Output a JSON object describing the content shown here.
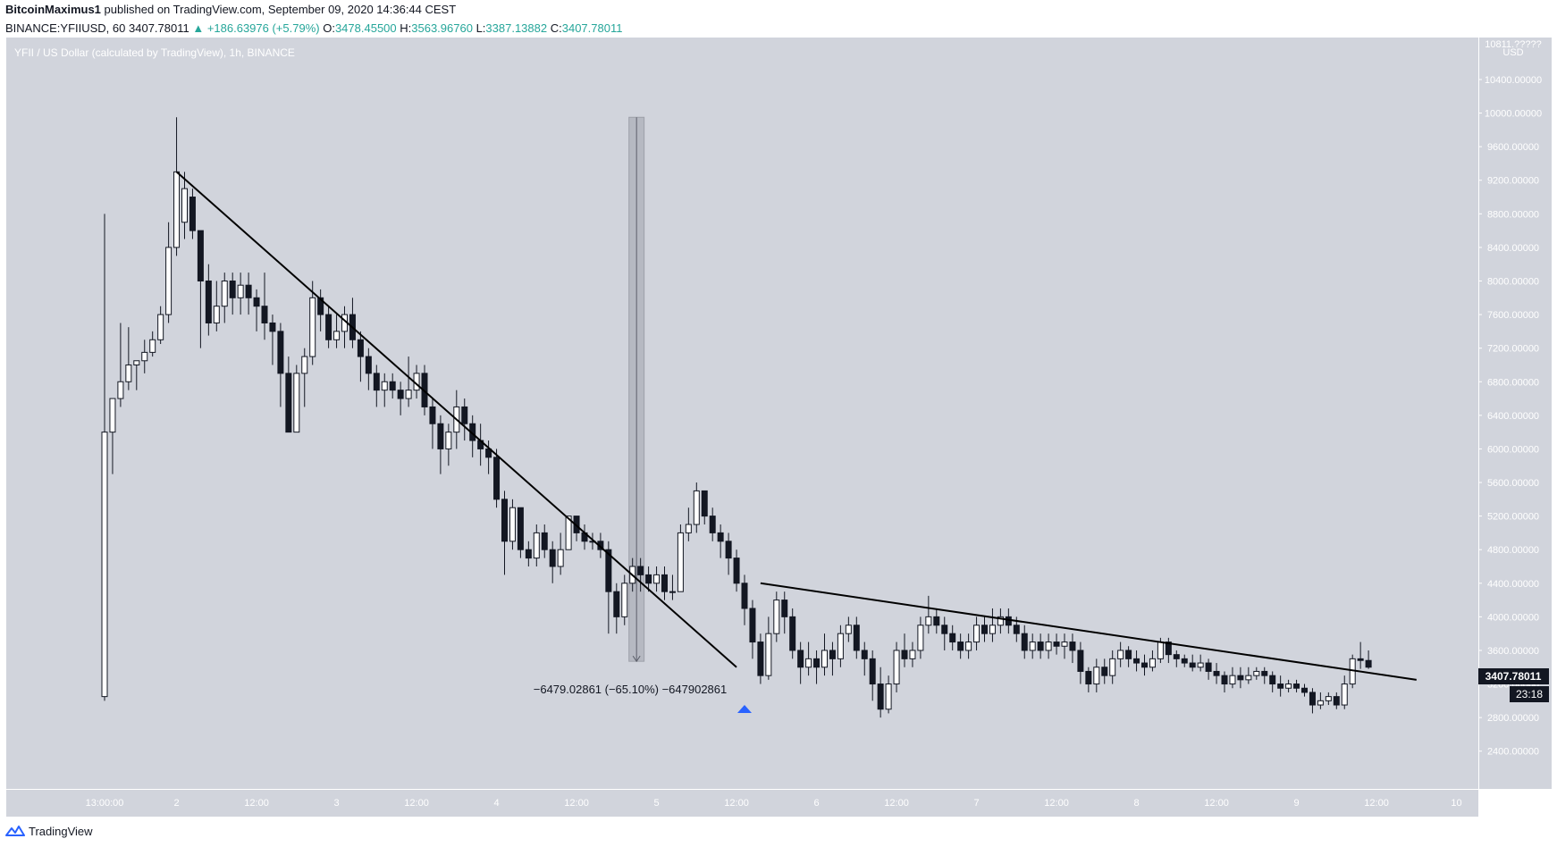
{
  "header": {
    "author": "BitcoinMaximus1",
    "published": "published on TradingView.com, September 09, 2020 14:36:44 CEST",
    "symbol": "BINANCE:YFIIUSD, 60",
    "last": "3407.78011",
    "change": "▲ +186.63976 (+5.79%)",
    "o_label": "O:",
    "o_value": "3478.45500",
    "h_label": "H:",
    "h_value": "3563.96760",
    "l_label": "L:",
    "l_value": "3387.13882",
    "c_label": "C:",
    "c_value": "3407.78011"
  },
  "chart_title": "YFII / US Dollar (calculated by TradingView), 1h, BINANCE",
  "axis_unit_top": "10811.?????",
  "axis_unit": "USD",
  "price_tag": "3407.78011",
  "countdown_tag": "23:18",
  "measure_label": "−6479.02861 (−65.10%) −647902861",
  "footer_brand": "TradingView",
  "colors": {
    "background": "#d1d4dc",
    "candle_up": "#ffffff",
    "candle_down": "#131722",
    "wick": "#131722",
    "trendline": "#000000",
    "measure_fill": "#b2b5be",
    "marker": "#2962ff",
    "header_up": "#26a69a"
  },
  "chart_data": {
    "type": "candlestick",
    "title": "YFII / US Dollar (calculated by TradingView), 1h, BINANCE",
    "ylabel": "USD",
    "ylim": [
      1950,
      10900
    ],
    "y_ticks": [
      "2400.00000",
      "2800.00000",
      "3200.00000",
      "3600.00000",
      "4000.00000",
      "4400.00000",
      "4800.00000",
      "5200.00000",
      "5600.00000",
      "6000.00000",
      "6400.00000",
      "6800.00000",
      "7200.00000",
      "7600.00000",
      "8000.00000",
      "8400.00000",
      "8800.00000",
      "9200.00000",
      "9600.00000",
      "10000.00000",
      "10400.00000"
    ],
    "y_tick_values": [
      2400,
      2800,
      3200,
      3600,
      4000,
      4400,
      4800,
      5200,
      5600,
      6000,
      6400,
      6800,
      7200,
      7600,
      8000,
      8400,
      8800,
      9200,
      9600,
      10000,
      10400
    ],
    "x_ticks": [
      "13:00:00",
      "2",
      "12:00",
      "3",
      "12:00",
      "4",
      "12:00",
      "5",
      "12:00",
      "6",
      "12:00",
      "7",
      "12:00",
      "8",
      "12:00",
      "9",
      "12:00",
      "10"
    ],
    "x_tick_bars": [
      0,
      9,
      19,
      29,
      39,
      49,
      59,
      69,
      79,
      89,
      99,
      109,
      119,
      129,
      139,
      149,
      159,
      169
    ],
    "candles": [
      [
        3050,
        6200,
        8800,
        3000
      ],
      [
        6200,
        6600,
        6600,
        5700
      ],
      [
        6600,
        6800,
        7500,
        6500
      ],
      [
        6800,
        7000,
        7450,
        6700
      ],
      [
        7000,
        7050,
        7050,
        6700
      ],
      [
        7050,
        7150,
        7300,
        6900
      ],
      [
        7150,
        7300,
        7400,
        7100
      ],
      [
        7300,
        7600,
        7700,
        7250
      ],
      [
        7600,
        8400,
        8700,
        7500
      ],
      [
        8400,
        9300,
        9950,
        8300
      ],
      [
        8700,
        9100,
        9300,
        8500
      ],
      [
        9000,
        8600,
        9100,
        8500
      ],
      [
        8600,
        8000,
        8600,
        7200
      ],
      [
        8000,
        7500,
        8200,
        7350
      ],
      [
        7500,
        7700,
        8000,
        7400
      ],
      [
        7700,
        8000,
        8100,
        7500
      ],
      [
        8000,
        7800,
        8100,
        7600
      ],
      [
        7800,
        7950,
        8100,
        7600
      ],
      [
        7950,
        7800,
        8100,
        7600
      ],
      [
        7800,
        7700,
        7900,
        7400
      ],
      [
        7700,
        7500,
        8100,
        7300
      ],
      [
        7500,
        7400,
        7600,
        7000
      ],
      [
        7400,
        6900,
        7500,
        6500
      ],
      [
        6900,
        6200,
        7100,
        6200
      ],
      [
        6200,
        6900,
        7000,
        6200
      ],
      [
        6900,
        7100,
        7200,
        6500
      ],
      [
        7100,
        7800,
        8000,
        7000
      ],
      [
        7800,
        7600,
        7900,
        7400
      ],
      [
        7600,
        7300,
        7700,
        7200
      ],
      [
        7300,
        7400,
        7600,
        7200
      ],
      [
        7400,
        7600,
        7700,
        7200
      ],
      [
        7600,
        7300,
        7800,
        7200
      ],
      [
        7300,
        7100,
        7400,
        6800
      ],
      [
        7100,
        6900,
        7200,
        6700
      ],
      [
        6900,
        6700,
        7000,
        6500
      ],
      [
        6700,
        6800,
        6900,
        6500
      ],
      [
        6800,
        6700,
        6900,
        6600
      ],
      [
        6700,
        6600,
        6800,
        6400
      ],
      [
        6600,
        6700,
        7100,
        6500
      ],
      [
        6700,
        6900,
        7000,
        6600
      ],
      [
        6900,
        6500,
        7000,
        6400
      ],
      [
        6500,
        6300,
        6600,
        6000
      ],
      [
        6300,
        6000,
        6400,
        5700
      ],
      [
        6000,
        6200,
        6300,
        5800
      ],
      [
        6200,
        6500,
        6700,
        6000
      ],
      [
        6500,
        6300,
        6600,
        6100
      ],
      [
        6300,
        6100,
        6400,
        5900
      ],
      [
        6100,
        6000,
        6300,
        5800
      ],
      [
        6000,
        5900,
        6100,
        5700
      ],
      [
        5900,
        5400,
        6000,
        5300
      ],
      [
        5400,
        4900,
        5500,
        4500
      ],
      [
        4900,
        5300,
        5400,
        4800
      ],
      [
        5300,
        4800,
        5300,
        4700
      ],
      [
        4800,
        4700,
        4900,
        4600
      ],
      [
        4700,
        5000,
        5100,
        4600
      ],
      [
        5000,
        4800,
        5100,
        4700
      ],
      [
        4800,
        4600,
        4900,
        4400
      ],
      [
        4600,
        4800,
        5000,
        4500
      ],
      [
        4800,
        5200,
        5200,
        4800
      ],
      [
        5200,
        5000,
        5200,
        4900
      ],
      [
        5000,
        4900,
        5100,
        4800
      ],
      [
        4900,
        4900,
        5000,
        4800
      ],
      [
        4900,
        4800,
        5000,
        4700
      ],
      [
        4800,
        4300,
        4900,
        3800
      ],
      [
        4300,
        4000,
        4400,
        3800
      ],
      [
        4000,
        4400,
        4500,
        3900
      ],
      [
        4400,
        4600,
        4700,
        4300
      ],
      [
        4600,
        4500,
        4700,
        4300
      ],
      [
        4500,
        4400,
        4600,
        4300
      ],
      [
        4400,
        4500,
        4600,
        4300
      ],
      [
        4500,
        4300,
        4600,
        4200
      ],
      [
        4300,
        4300,
        4500,
        4200
      ],
      [
        4300,
        5000,
        5100,
        4300
      ],
      [
        5000,
        5100,
        5300,
        4900
      ],
      [
        5100,
        5500,
        5600,
        5000
      ],
      [
        5500,
        5200,
        5500,
        5100
      ],
      [
        5200,
        5000,
        5300,
        4900
      ],
      [
        5000,
        4900,
        5100,
        4700
      ],
      [
        4900,
        4700,
        5000,
        4500
      ],
      [
        4700,
        4400,
        4800,
        4300
      ],
      [
        4400,
        4100,
        4500,
        3900
      ],
      [
        4100,
        3700,
        4200,
        3500
      ],
      [
        3700,
        3300,
        3800,
        3200
      ],
      [
        3300,
        3800,
        4000,
        3250
      ],
      [
        3800,
        4200,
        4300,
        3700
      ],
      [
        4200,
        4000,
        4300,
        3800
      ],
      [
        4000,
        3600,
        4100,
        3500
      ],
      [
        3600,
        3400,
        3700,
        3200
      ],
      [
        3400,
        3500,
        3700,
        3300
      ],
      [
        3500,
        3400,
        3600,
        3200
      ],
      [
        3400,
        3600,
        3800,
        3300
      ],
      [
        3600,
        3500,
        3700,
        3300
      ],
      [
        3500,
        3800,
        3900,
        3400
      ],
      [
        3800,
        3900,
        4000,
        3700
      ],
      [
        3900,
        3600,
        4000,
        3500
      ],
      [
        3600,
        3500,
        3700,
        3300
      ],
      [
        3500,
        3200,
        3600,
        3000
      ],
      [
        3200,
        2900,
        3400,
        2800
      ],
      [
        2900,
        3200,
        3300,
        2850
      ],
      [
        3200,
        3600,
        3700,
        3100
      ],
      [
        3600,
        3500,
        3800,
        3400
      ],
      [
        3500,
        3600,
        3700,
        3400
      ],
      [
        3600,
        3900,
        4000,
        3500
      ],
      [
        3900,
        4000,
        4250,
        3800
      ],
      [
        4000,
        3900,
        4100,
        3800
      ],
      [
        3900,
        3800,
        4000,
        3600
      ],
      [
        3800,
        3700,
        3900,
        3600
      ],
      [
        3700,
        3600,
        3800,
        3500
      ],
      [
        3600,
        3700,
        3800,
        3500
      ],
      [
        3700,
        3900,
        4000,
        3600
      ],
      [
        3900,
        3800,
        4000,
        3700
      ],
      [
        3800,
        3900,
        4100,
        3700
      ],
      [
        3900,
        4000,
        4100,
        3800
      ],
      [
        4000,
        3900,
        4100,
        3800
      ],
      [
        3900,
        3800,
        4000,
        3700
      ],
      [
        3800,
        3600,
        3900,
        3500
      ],
      [
        3600,
        3700,
        3800,
        3500
      ],
      [
        3700,
        3600,
        3800,
        3500
      ],
      [
        3600,
        3700,
        3800,
        3500
      ],
      [
        3700,
        3650,
        3800,
        3550
      ],
      [
        3650,
        3700,
        3800,
        3500
      ],
      [
        3700,
        3600,
        3800,
        3450
      ],
      [
        3600,
        3350,
        3700,
        3200
      ],
      [
        3350,
        3200,
        3400,
        3100
      ],
      [
        3200,
        3400,
        3500,
        3100
      ],
      [
        3400,
        3300,
        3500,
        3200
      ],
      [
        3300,
        3500,
        3600,
        3200
      ],
      [
        3500,
        3600,
        3700,
        3400
      ],
      [
        3600,
        3500,
        3650,
        3400
      ],
      [
        3500,
        3450,
        3600,
        3350
      ],
      [
        3450,
        3400,
        3550,
        3300
      ],
      [
        3400,
        3500,
        3600,
        3350
      ],
      [
        3500,
        3700,
        3750,
        3450
      ],
      [
        3700,
        3550,
        3750,
        3450
      ],
      [
        3550,
        3500,
        3600,
        3400
      ],
      [
        3500,
        3450,
        3550,
        3400
      ],
      [
        3450,
        3400,
        3550,
        3350
      ],
      [
        3400,
        3450,
        3550,
        3350
      ],
      [
        3450,
        3350,
        3500,
        3250
      ],
      [
        3350,
        3300,
        3450,
        3200
      ],
      [
        3300,
        3200,
        3350,
        3100
      ],
      [
        3200,
        3300,
        3400,
        3150
      ],
      [
        3300,
        3250,
        3400,
        3150
      ],
      [
        3250,
        3300,
        3400,
        3200
      ],
      [
        3300,
        3350,
        3400,
        3250
      ],
      [
        3350,
        3300,
        3400,
        3200
      ],
      [
        3300,
        3200,
        3350,
        3100
      ],
      [
        3200,
        3150,
        3300,
        3050
      ],
      [
        3150,
        3200,
        3250,
        3100
      ],
      [
        3200,
        3150,
        3250,
        3100
      ],
      [
        3150,
        3100,
        3200,
        3050
      ],
      [
        3100,
        2950,
        3150,
        2850
      ],
      [
        2950,
        3000,
        3100,
        2900
      ],
      [
        3000,
        3050,
        3100,
        2950
      ],
      [
        3050,
        2950,
        3100,
        2900
      ],
      [
        2950,
        3200,
        3300,
        2900
      ],
      [
        3200,
        3500,
        3550,
        3150
      ],
      [
        3500,
        3480,
        3700,
        3380
      ],
      [
        3480,
        3400,
        3600,
        3380
      ]
    ],
    "trendlines": [
      {
        "from": [
          9,
          9300
        ],
        "to": [
          79,
          3400
        ]
      },
      {
        "from": [
          82,
          4400
        ],
        "to": [
          164,
          3250
        ]
      }
    ],
    "measure": {
      "from_bar": 66,
      "to_bar": 67,
      "from_price": 9950,
      "to_price": 3470,
      "change": -6479.02861,
      "percent": -65.1
    },
    "marker_bar": 80
  }
}
